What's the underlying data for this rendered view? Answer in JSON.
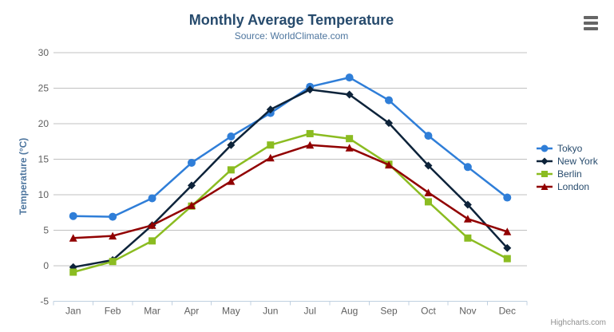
{
  "credits": "Highcharts.com",
  "icons": {
    "menu": "hamburger-menu"
  },
  "chart_data": {
    "type": "line",
    "title": "Monthly Average Temperature",
    "subtitle": "Source: WorldClimate.com",
    "xlabel": "",
    "ylabel": "Temperature (°C)",
    "categories": [
      "Jan",
      "Feb",
      "Mar",
      "Apr",
      "May",
      "Jun",
      "Jul",
      "Aug",
      "Sep",
      "Oct",
      "Nov",
      "Dec"
    ],
    "ylim": [
      -5,
      30
    ],
    "ytick_step": 5,
    "grid": true,
    "legend_position": "right",
    "series": [
      {
        "name": "Tokyo",
        "color": "#2f7ed8",
        "marker": "circle",
        "values": [
          7.0,
          6.9,
          9.5,
          14.5,
          18.2,
          21.5,
          25.2,
          26.5,
          23.3,
          18.3,
          13.9,
          9.6
        ]
      },
      {
        "name": "New York",
        "color": "#0d233a",
        "marker": "diamond",
        "values": [
          -0.2,
          0.8,
          5.7,
          11.3,
          17.0,
          22.0,
          24.8,
          24.1,
          20.1,
          14.1,
          8.6,
          2.5
        ]
      },
      {
        "name": "Berlin",
        "color": "#8bbc21",
        "marker": "square",
        "values": [
          -0.9,
          0.6,
          3.5,
          8.4,
          13.5,
          17.0,
          18.6,
          17.9,
          14.3,
          9.0,
          3.9,
          1.0
        ]
      },
      {
        "name": "London",
        "color": "#910000",
        "marker": "triangle",
        "values": [
          3.9,
          4.2,
          5.7,
          8.5,
          11.9,
          15.2,
          17.0,
          16.6,
          14.2,
          10.3,
          6.6,
          4.8
        ]
      }
    ]
  }
}
